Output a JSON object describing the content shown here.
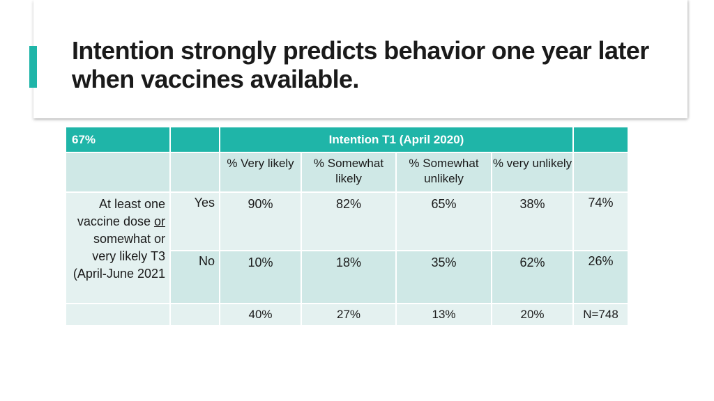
{
  "slide": {
    "title": "Intention strongly predicts behavior one year later when vaccines available."
  },
  "table": {
    "corner_label": "67%",
    "intention_header": "Intention T1 (April 2020)",
    "columns": [
      "% Very likely",
      "% Somewhat likely",
      "% Somewhat unlikely",
      "% very unlikely"
    ],
    "row_label_parts": [
      "At least one vaccine dose ",
      "or",
      " somewhat or very likely T3 (April-June 2021"
    ],
    "rows": [
      {
        "label": "Yes",
        "values": [
          "90%",
          "82%",
          "65%",
          "38%"
        ],
        "total": "74%"
      },
      {
        "label": "No",
        "values": [
          "10%",
          "18%",
          "35%",
          "62%"
        ],
        "total": "26%"
      }
    ],
    "column_totals": [
      "40%",
      "27%",
      "13%",
      "20%"
    ],
    "n_label": "N=748"
  },
  "colors": {
    "accent": "#1fb5a8",
    "row_light": "#e4f1f0",
    "row_mid": "#cfe8e6"
  }
}
